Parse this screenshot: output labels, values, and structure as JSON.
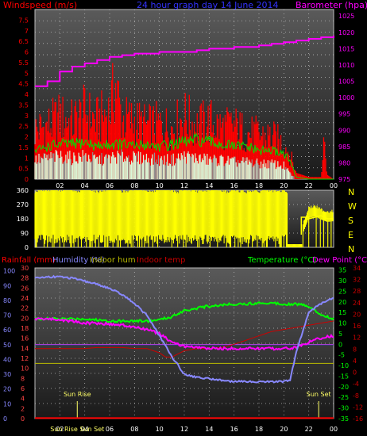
{
  "chart_data": [
    {
      "type": "bar",
      "title": "24 hour graph day  14 June 2014",
      "left_label": "Windspeed (m/s)",
      "right_label": "Barometer (hpa)",
      "x_ticks": [
        "02",
        "04",
        "06",
        "08",
        "10",
        "12",
        "14",
        "16",
        "18",
        "20",
        "22",
        "00"
      ],
      "y_left_ticks": [
        "0",
        "0.5",
        "1",
        "1.5",
        "2",
        "2.5",
        "3",
        "3.5",
        "4",
        "4.5",
        "5",
        "5.5",
        "6",
        "6.5",
        "7",
        "7.5"
      ],
      "y_right_ticks": [
        "975",
        "980",
        "985",
        "990",
        "995",
        "1000",
        "1005",
        "1010",
        "1015",
        "1020",
        "1025"
      ],
      "ylim_left": [
        0,
        8
      ],
      "ylim_right": [
        975,
        1027
      ],
      "series": [
        {
          "kind": "gust",
          "color": "#ff0000",
          "hours": [
            0,
            1,
            2,
            3,
            4,
            5,
            6,
            6.5,
            7,
            8,
            9,
            10,
            11,
            12,
            13,
            14,
            15,
            16,
            17,
            18,
            19,
            20,
            20.5,
            21,
            22,
            23,
            23.2,
            23.5,
            24
          ],
          "values": [
            2.8,
            3.0,
            3.5,
            3.2,
            3.8,
            3.3,
            3.9,
            5.4,
            3.4,
            3.3,
            3.0,
            3.1,
            2.9,
            3.6,
            3.0,
            3.3,
            2.9,
            3.0,
            2.6,
            2.5,
            2.4,
            2.0,
            1.4,
            0.3,
            0.1,
            0.1,
            2.1,
            0.2,
            0.0
          ]
        },
        {
          "kind": "average",
          "color": "#00dd00",
          "hours": [
            0,
            1,
            2,
            3,
            4,
            5,
            6,
            7,
            8,
            9,
            10,
            11,
            12,
            13,
            14,
            15,
            16,
            17,
            18,
            19,
            20,
            20.5,
            21,
            22,
            24
          ],
          "values": [
            1.3,
            1.5,
            1.6,
            1.6,
            1.7,
            1.5,
            1.6,
            1.6,
            1.5,
            1.6,
            1.5,
            1.6,
            1.7,
            1.8,
            1.7,
            1.6,
            1.5,
            1.5,
            1.3,
            1.3,
            1.2,
            0.8,
            0.1,
            0.0,
            0.0
          ]
        },
        {
          "kind": "windrun",
          "color": "#d8f8d8",
          "hours": [
            0,
            1,
            2,
            3,
            4,
            5,
            6,
            7,
            8,
            9,
            10,
            11,
            12,
            13,
            14,
            15,
            16,
            17,
            18,
            19,
            20,
            20.5,
            21,
            24
          ],
          "values": [
            1.0,
            1.1,
            1.2,
            1.1,
            1.2,
            1.0,
            1.1,
            1.2,
            1.1,
            1.1,
            1.0,
            1.0,
            1.2,
            1.1,
            1.0,
            1.0,
            0.9,
            0.9,
            0.8,
            0.8,
            0.7,
            0.3,
            0.0,
            0.0
          ]
        },
        {
          "kind": "pressure",
          "color": "#ff00ff",
          "hours": [
            0,
            1,
            2,
            3,
            4,
            5,
            6,
            7,
            8,
            9,
            10,
            11,
            12,
            13,
            14,
            15,
            16,
            17,
            18,
            19,
            20,
            21,
            22,
            23,
            24
          ],
          "values": [
            1003.5,
            1005,
            1008,
            1009.5,
            1010.5,
            1011.5,
            1012.5,
            1013,
            1013.5,
            1013.5,
            1014,
            1014,
            1014,
            1014.5,
            1015,
            1015,
            1015.5,
            1015.5,
            1016,
            1016.5,
            1017,
            1017.5,
            1018,
            1018.5,
            1019
          ]
        }
      ]
    },
    {
      "type": "scatter",
      "y_ticks": [
        "0",
        "90",
        "180",
        "270",
        "360"
      ],
      "compass": [
        "N",
        "W",
        "S",
        "E",
        "N"
      ],
      "ylim": [
        0,
        360
      ],
      "color": "#ffff00",
      "series": [
        {
          "kind": "direction",
          "hours": [
            0,
            0.5,
            1,
            1.5,
            2,
            2.5,
            3,
            3.5,
            4,
            4.5,
            5,
            5.5,
            6,
            6.5,
            7,
            7.5,
            8,
            8.5,
            9,
            9.5,
            10,
            10.5,
            11,
            11.5,
            12,
            12.5,
            13,
            13.5,
            14,
            14.5,
            15,
            15.5,
            16,
            16.5,
            17,
            17.5,
            18,
            18.5,
            19,
            19.5,
            20,
            20.5,
            21,
            21.5,
            22,
            22.5,
            23,
            23.5,
            24
          ],
          "values": [
            300,
            315,
            310,
            320,
            305,
            330,
            310,
            300,
            325,
            315,
            300,
            310,
            320,
            330,
            305,
            300,
            315,
            320,
            310,
            300,
            325,
            315,
            310,
            300,
            320,
            310,
            305,
            300,
            315,
            320,
            310,
            300,
            315,
            305,
            300,
            310,
            300,
            315,
            305,
            300,
            310,
            290,
            80,
            95,
            200,
            210,
            190,
            175,
            180
          ]
        }
      ]
    },
    {
      "type": "line",
      "left_labels": [
        "Rainfall (mm)",
        "Humidity (%)",
        "Indoor hum",
        "Indoor temp"
      ],
      "right_labels": [
        "Temperature (°C)",
        "Dew Point (°C)"
      ],
      "x_ticks": [
        "02",
        "04",
        "06",
        "08",
        "10",
        "12",
        "14",
        "16",
        "18",
        "20",
        "22",
        "00"
      ],
      "y_hum_ticks": [
        "0",
        "10",
        "20",
        "30",
        "40",
        "50",
        "60",
        "70",
        "80",
        "90",
        "100"
      ],
      "y_rain_ticks": [
        "0",
        "2",
        "4",
        "6",
        "8",
        "10",
        "12",
        "14",
        "16",
        "18",
        "20",
        "22",
        "24",
        "26",
        "28",
        "30"
      ],
      "y_temp_ticks": [
        "-35",
        "-30",
        "-25",
        "-20",
        "-15",
        "-10",
        "-5",
        "0",
        "5",
        "10",
        "15",
        "20",
        "25",
        "30",
        "35"
      ],
      "y_indoor_ticks": [
        "-16",
        "-12",
        "-8",
        "-4",
        "0",
        "4",
        "8",
        "12",
        "16",
        "20",
        "24",
        "28",
        "32",
        "34"
      ],
      "ylim_hum": [
        0,
        102
      ],
      "ylim_temp": [
        -35,
        36
      ],
      "annotations": [
        "Sun Rise",
        "Sun Set",
        "Sun Rise",
        "Sun Set",
        "Sun Rise"
      ],
      "annotation_hours": [
        3.4,
        22.8
      ],
      "series": [
        {
          "kind": "humidity",
          "color": "#8888ff",
          "hours": [
            0,
            1,
            2,
            3,
            4,
            5,
            6,
            7,
            8,
            9,
            10,
            11,
            12,
            13,
            14,
            15,
            16,
            17,
            18,
            19,
            20,
            20.5,
            21,
            22,
            23,
            24
          ],
          "values": [
            95,
            96,
            96,
            95,
            93,
            91,
            88,
            84,
            78,
            70,
            56,
            42,
            30,
            28,
            27,
            26,
            25,
            25,
            25,
            25,
            25,
            26,
            45,
            72,
            78,
            82
          ]
        },
        {
          "kind": "temperature",
          "color": "#00ff00",
          "hours": [
            0,
            1,
            2,
            3,
            4,
            5,
            6,
            7,
            8,
            9,
            10,
            11,
            12,
            13,
            14,
            15,
            16,
            17,
            18,
            19,
            20,
            21,
            22,
            23,
            24
          ],
          "values": [
            12,
            12,
            12,
            12,
            12,
            11.5,
            11,
            11,
            11,
            11,
            11.5,
            13,
            16,
            17,
            18,
            18.5,
            19,
            19,
            19.5,
            19.5,
            19,
            19,
            18,
            14,
            12
          ]
        },
        {
          "kind": "dewpoint",
          "color": "#ff00ff",
          "hours": [
            0,
            1,
            2,
            3,
            4,
            5,
            6,
            7,
            8,
            9,
            10,
            11,
            12,
            13,
            14,
            15,
            16,
            17,
            18,
            19,
            20,
            21,
            22,
            23,
            24
          ],
          "values": [
            12,
            12,
            11.5,
            11,
            10,
            10,
            9.5,
            9,
            8,
            7,
            5,
            1,
            -1,
            -1.5,
            -2,
            -2,
            -2,
            -2,
            -2,
            -2,
            -2,
            -1.5,
            1,
            3,
            4
          ]
        },
        {
          "kind": "indoor_temp",
          "color": "#cc0000",
          "hours": [
            0,
            1,
            2,
            3,
            4,
            5,
            6,
            7,
            8,
            9,
            10,
            10.5,
            11,
            12,
            13,
            14,
            15,
            16,
            17,
            18,
            19,
            20,
            21,
            22,
            23,
            24
          ],
          "values": [
            -2,
            -2,
            -2,
            -2,
            -2,
            -1.5,
            -1.5,
            -1.5,
            -2,
            -2,
            -4,
            -6,
            -6,
            -3,
            -2,
            -2,
            -1.5,
            0,
            2,
            4,
            6,
            7,
            8,
            9,
            10,
            11
          ]
        },
        {
          "kind": "indoor_hum",
          "color": "#bbbb00",
          "hours": [
            0,
            24
          ],
          "values": [
            -9,
            -9
          ]
        },
        {
          "kind": "rainfall",
          "color": "#ff0000",
          "hours": [
            0,
            24
          ],
          "values": [
            0.1,
            0.1
          ]
        }
      ]
    }
  ]
}
